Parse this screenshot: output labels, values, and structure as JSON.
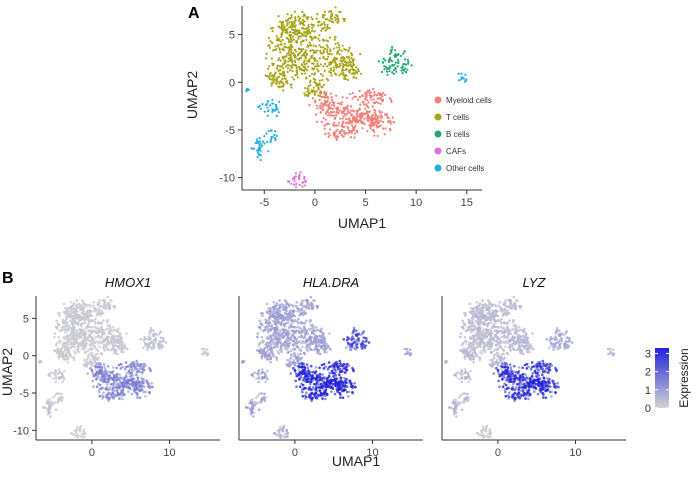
{
  "panel_a": {
    "letter": "A",
    "chart_data": {
      "type": "scatter",
      "xlabel": "UMAP1",
      "ylabel": "UMAP2",
      "xlim": [
        -7.2,
        16.5
      ],
      "ylim": [
        -11.3,
        8.0
      ],
      "xticks": [
        -5,
        0,
        5,
        10,
        15
      ],
      "yticks": [
        5,
        0,
        -5,
        -10
      ],
      "grid": false,
      "legend_position": "right",
      "series": [
        {
          "name": "Myeloid cells",
          "color": "#F08078",
          "clusters": [
            [
              3.5,
              -3.5,
              3.2,
              1.6
            ],
            [
              1.2,
              -2.3,
              1.6,
              1.2
            ],
            [
              6.0,
              -4.2,
              1.7,
              1.3
            ],
            [
              5.5,
              -1.6,
              2.2,
              0.8
            ],
            [
              2.8,
              -5.2,
              1.8,
              0.8
            ]
          ]
        },
        {
          "name": "T cells",
          "color": "#A8A418",
          "clusters": [
            [
              -1.2,
              3.0,
              3.3,
              3.5
            ],
            [
              -2.0,
              5.8,
              2.2,
              1.6
            ],
            [
              1.6,
              6.8,
              1.3,
              1.0
            ],
            [
              2.8,
              2.3,
              1.6,
              1.8
            ],
            [
              -3.5,
              0.5,
              1.4,
              1.3
            ],
            [
              3.6,
              1.2,
              1.0,
              1.0
            ],
            [
              0.3,
              -0.8,
              1.5,
              1.0
            ]
          ]
        },
        {
          "name": "B cells",
          "color": "#20A870",
          "clusters": [
            [
              7.8,
              1.8,
              1.6,
              1.1
            ],
            [
              8.2,
              3.2,
              0.8,
              0.6
            ]
          ]
        },
        {
          "name": "CAFs",
          "color": "#E070D8",
          "clusters": [
            [
              -1.6,
              -10.2,
              1.0,
              0.8
            ]
          ]
        },
        {
          "name": "Other cells",
          "color": "#20B0E0",
          "clusters": [
            [
              -4.4,
              -2.7,
              1.1,
              0.9
            ],
            [
              -5.6,
              -7.0,
              0.9,
              1.1
            ],
            [
              -4.3,
              -5.7,
              0.7,
              0.8
            ],
            [
              14.6,
              0.6,
              0.4,
              0.7
            ],
            [
              -6.7,
              -0.8,
              0.15,
              0.15
            ]
          ]
        }
      ]
    }
  },
  "panel_b": {
    "letter": "B",
    "chart_data": [
      {
        "type": "scatter",
        "title": "HMOX1",
        "xlabel": "",
        "ylabel": "UMAP2",
        "xlim": [
          -7.2,
          16.5
        ],
        "ylim": [
          -11.3,
          8.0
        ],
        "xticks": [
          0,
          10
        ],
        "yticks": [
          5,
          0,
          -5,
          -10
        ],
        "expression": {
          "T cells": 0.15,
          "Myeloid cells": 1.1,
          "B cells": 0.25,
          "CAFs": 0.1,
          "Other cells": 0.2
        }
      },
      {
        "type": "scatter",
        "title": "HLA.DRA",
        "xlabel": "",
        "ylabel": "",
        "xlim": [
          -7.2,
          16.5
        ],
        "ylim": [
          -11.3,
          8.0
        ],
        "xticks": [
          0,
          10
        ],
        "yticks": [],
        "expression": {
          "T cells": 0.7,
          "Myeloid cells": 2.7,
          "B cells": 1.9,
          "CAFs": 0.6,
          "Other cells": 0.7
        }
      },
      {
        "type": "scatter",
        "title": "LYZ",
        "xlabel": "",
        "ylabel": "",
        "xlim": [
          -7.2,
          16.5
        ],
        "ylim": [
          -11.3,
          8.0
        ],
        "xticks": [
          0,
          10
        ],
        "yticks": [],
        "expression": {
          "T cells": 0.35,
          "Myeloid cells": 2.3,
          "B cells": 0.6,
          "CAFs": 0.2,
          "Other cells": 0.4
        }
      }
    ],
    "shared_xlabel": "UMAP1",
    "colorbar": {
      "title": "Expression",
      "ticks": [
        3,
        2,
        1,
        0
      ],
      "range": [
        0,
        3.3
      ],
      "low_color": "#D3D3D3",
      "high_color": "#2222DD"
    }
  }
}
